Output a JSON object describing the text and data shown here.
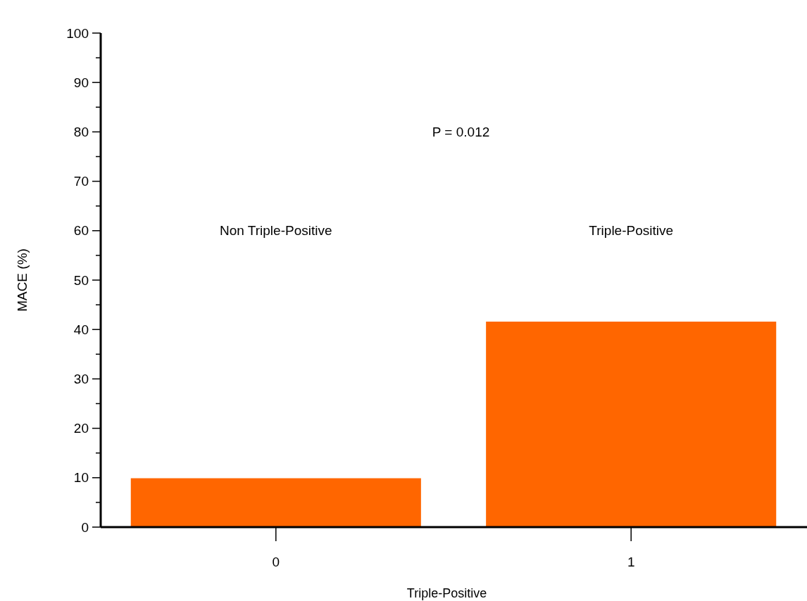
{
  "chart_data": {
    "type": "bar",
    "xlabel": "Triple-Positive",
    "ylabel": "MACE (%)",
    "categories": [
      "0",
      "1"
    ],
    "values": [
      10,
      41.7
    ],
    "color": "#ff6600",
    "ylim": [
      0,
      100
    ],
    "yticks": [
      0,
      {
        "value": 5,
        "label": null
      },
      10,
      {
        "value": 15,
        "label": null
      },
      20,
      {
        "value": 25,
        "label": null
      },
      30,
      {
        "value": 35,
        "label": null
      },
      40,
      {
        "value": 45,
        "label": null
      },
      50,
      {
        "value": 55,
        "label": null
      },
      60,
      {
        "value": 65,
        "label": null
      },
      70,
      {
        "value": 75,
        "label": null
      },
      80,
      {
        "value": 85,
        "label": null
      },
      90,
      {
        "value": 95,
        "label": null
      },
      100
    ],
    "annotations": [
      "P = 0.012",
      "Non Triple-Positive",
      "Triple-Positive"
    ]
  }
}
